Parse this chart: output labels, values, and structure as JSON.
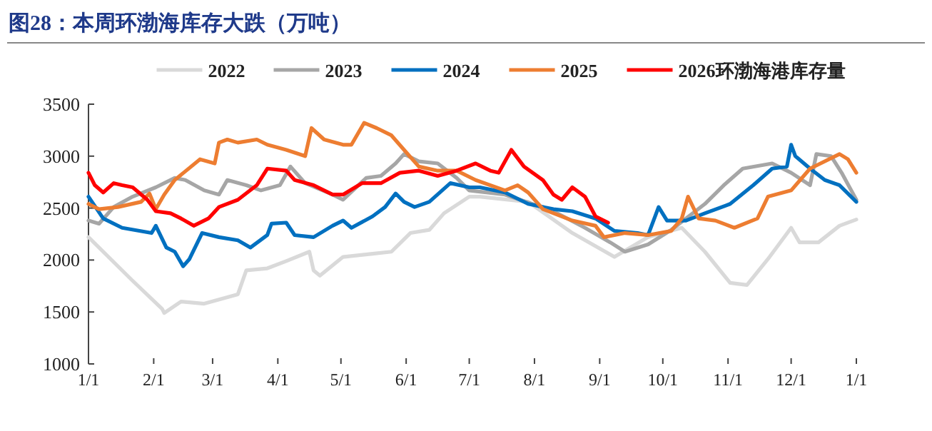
{
  "chart_data": {
    "type": "line",
    "title": "图28：本周环渤海库存大跌（万吨）",
    "legend": "top",
    "grid": false,
    "xlim": [
      "2025-01-01",
      "2026-01-01"
    ],
    "xticks": [
      {
        "value": "2025-01-01",
        "label": "1/1"
      },
      {
        "value": "2025-02-01",
        "label": "2/1"
      },
      {
        "value": "2025-03-01",
        "label": "3/1"
      },
      {
        "value": "2025-04-01",
        "label": "4/1"
      },
      {
        "value": "2025-05-01",
        "label": "5/1"
      },
      {
        "value": "2025-06-01",
        "label": "6/1"
      },
      {
        "value": "2025-07-01",
        "label": "7/1"
      },
      {
        "value": "2025-08-01",
        "label": "8/1"
      },
      {
        "value": "2025-09-01",
        "label": "9/1"
      },
      {
        "value": "2025-10-01",
        "label": "10/1"
      },
      {
        "value": "2025-11-01",
        "label": "11/1"
      },
      {
        "value": "2025-12-01",
        "label": "12/1"
      },
      {
        "value": "2026-01-01",
        "label": "1/1"
      }
    ],
    "ylim": [
      1000,
      3500
    ],
    "yticks": [
      1000,
      1500,
      2000,
      2500,
      3000,
      3500
    ],
    "series": [
      {
        "name": "2022",
        "color": "#d9d9d9",
        "x": [
          "2025-01-01",
          "2025-01-22",
          "2025-02-05",
          "2025-02-06",
          "2025-02-14",
          "2025-02-25",
          "2025-03-13",
          "2025-03-17",
          "2025-03-27",
          "2025-04-05",
          "2025-04-16",
          "2025-04-18",
          "2025-04-21",
          "2025-05-02",
          "2025-05-16",
          "2025-05-25",
          "2025-06-03",
          "2025-06-12",
          "2025-06-19",
          "2025-07-01",
          "2025-07-06",
          "2025-07-29",
          "2025-08-19",
          "2025-09-08",
          "2025-09-24",
          "2025-10-10",
          "2025-10-21",
          "2025-11-02",
          "2025-11-10",
          "2025-11-20",
          "2025-12-01",
          "2025-12-05",
          "2025-12-14",
          "2025-12-24",
          "2026-01-01"
        ],
        "values": [
          2220,
          1800,
          1530,
          1490,
          1600,
          1580,
          1670,
          1900,
          1920,
          1990,
          2080,
          1900,
          1850,
          2030,
          2060,
          2080,
          2260,
          2290,
          2450,
          2610,
          2610,
          2560,
          2260,
          2030,
          2220,
          2310,
          2080,
          1780,
          1760,
          2010,
          2310,
          2170,
          2170,
          2330,
          2390
        ]
      },
      {
        "name": "2023",
        "color": "#a6a6a6",
        "x": [
          "2025-01-01",
          "2025-01-06",
          "2025-01-13",
          "2025-01-22",
          "2025-02-02",
          "2025-02-11",
          "2025-02-16",
          "2025-02-25",
          "2025-03-04",
          "2025-03-08",
          "2025-03-17",
          "2025-03-24",
          "2025-04-02",
          "2025-04-07",
          "2025-04-14",
          "2025-04-27",
          "2025-05-02",
          "2025-05-13",
          "2025-05-20",
          "2025-05-27",
          "2025-05-31",
          "2025-06-07",
          "2025-06-16",
          "2025-06-25",
          "2025-07-01",
          "2025-07-18",
          "2025-08-10",
          "2025-08-25",
          "2025-09-06",
          "2025-09-13",
          "2025-09-24",
          "2025-10-05",
          "2025-10-21",
          "2025-10-30",
          "2025-11-08",
          "2025-11-22",
          "2025-12-01",
          "2025-12-10",
          "2025-12-13",
          "2025-12-20",
          "2025-12-25",
          "2026-01-01"
        ],
        "values": [
          2380,
          2350,
          2510,
          2610,
          2700,
          2790,
          2770,
          2670,
          2630,
          2770,
          2720,
          2670,
          2720,
          2900,
          2740,
          2630,
          2580,
          2790,
          2810,
          2930,
          3020,
          2950,
          2930,
          2790,
          2670,
          2630,
          2470,
          2310,
          2170,
          2080,
          2150,
          2290,
          2540,
          2720,
          2880,
          2930,
          2840,
          2720,
          3020,
          3000,
          2840,
          2580
        ]
      },
      {
        "name": "2024",
        "color": "#0070c0",
        "x": [
          "2025-01-01",
          "2025-01-08",
          "2025-01-17",
          "2025-01-31",
          "2025-02-02",
          "2025-02-07",
          "2025-02-11",
          "2025-02-15",
          "2025-02-18",
          "2025-02-24",
          "2025-03-04",
          "2025-03-13",
          "2025-03-19",
          "2025-03-27",
          "2025-03-29",
          "2025-04-05",
          "2025-04-09",
          "2025-04-18",
          "2025-04-27",
          "2025-05-02",
          "2025-05-06",
          "2025-05-16",
          "2025-05-22",
          "2025-05-27",
          "2025-05-31",
          "2025-06-05",
          "2025-06-12",
          "2025-06-22",
          "2025-07-01",
          "2025-07-06",
          "2025-07-18",
          "2025-07-29",
          "2025-08-10",
          "2025-08-19",
          "2025-08-30",
          "2025-09-08",
          "2025-09-19",
          "2025-09-24",
          "2025-09-29",
          "2025-10-03",
          "2025-10-12",
          "2025-10-21",
          "2025-11-02",
          "2025-11-13",
          "2025-11-22",
          "2025-11-29",
          "2025-12-01",
          "2025-12-03",
          "2025-12-10",
          "2025-12-17",
          "2025-12-24",
          "2026-01-01"
        ],
        "values": [
          2610,
          2400,
          2310,
          2260,
          2330,
          2120,
          2080,
          1940,
          2010,
          2260,
          2220,
          2190,
          2120,
          2240,
          2350,
          2360,
          2240,
          2220,
          2330,
          2380,
          2310,
          2420,
          2510,
          2640,
          2560,
          2510,
          2560,
          2740,
          2700,
          2700,
          2650,
          2540,
          2490,
          2470,
          2400,
          2280,
          2260,
          2240,
          2510,
          2380,
          2380,
          2450,
          2540,
          2720,
          2880,
          2900,
          3110,
          3000,
          2880,
          2770,
          2720,
          2560
        ]
      },
      {
        "name": "2025",
        "color": "#ed7d31",
        "x": [
          "2025-01-01",
          "2025-01-06",
          "2025-01-15",
          "2025-01-26",
          "2025-01-30",
          "2025-02-02",
          "2025-02-06",
          "2025-02-11",
          "2025-02-23",
          "2025-03-02",
          "2025-03-04",
          "2025-03-08",
          "2025-03-13",
          "2025-03-22",
          "2025-03-27",
          "2025-04-05",
          "2025-04-14",
          "2025-04-17",
          "2025-04-23",
          "2025-05-02",
          "2025-05-06",
          "2025-05-12",
          "2025-05-18",
          "2025-05-25",
          "2025-05-31",
          "2025-06-07",
          "2025-06-16",
          "2025-06-25",
          "2025-07-04",
          "2025-07-18",
          "2025-07-24",
          "2025-07-29",
          "2025-08-05",
          "2025-08-19",
          "2025-08-30",
          "2025-09-03",
          "2025-09-13",
          "2025-09-24",
          "2025-10-05",
          "2025-10-10",
          "2025-10-13",
          "2025-10-18",
          "2025-10-26",
          "2025-11-04",
          "2025-11-15",
          "2025-11-20",
          "2025-12-01",
          "2025-12-10",
          "2025-12-24",
          "2025-12-28",
          "2026-01-01"
        ],
        "values": [
          2540,
          2490,
          2510,
          2560,
          2640,
          2490,
          2630,
          2770,
          2970,
          2930,
          3130,
          3160,
          3130,
          3160,
          3110,
          3060,
          3000,
          3270,
          3160,
          3110,
          3110,
          3320,
          3270,
          3200,
          3060,
          2900,
          2860,
          2860,
          2770,
          2670,
          2720,
          2650,
          2490,
          2380,
          2330,
          2220,
          2260,
          2240,
          2280,
          2400,
          2610,
          2400,
          2380,
          2310,
          2400,
          2610,
          2670,
          2880,
          3020,
          2970,
          2840
        ]
      },
      {
        "name": "2026环渤海港库存量",
        "color": "#ff0000",
        "x": [
          "2025-01-01",
          "2025-01-04",
          "2025-01-08",
          "2025-01-13",
          "2025-01-17",
          "2025-01-22",
          "2025-01-29",
          "2025-02-02",
          "2025-02-09",
          "2025-02-14",
          "2025-02-20",
          "2025-02-27",
          "2025-03-04",
          "2025-03-13",
          "2025-03-22",
          "2025-03-27",
          "2025-04-05",
          "2025-04-09",
          "2025-04-18",
          "2025-04-27",
          "2025-05-02",
          "2025-05-11",
          "2025-05-20",
          "2025-05-29",
          "2025-06-07",
          "2025-06-16",
          "2025-06-25",
          "2025-07-04",
          "2025-07-11",
          "2025-07-15",
          "2025-07-21",
          "2025-07-27",
          "2025-08-05",
          "2025-08-10",
          "2025-08-14",
          "2025-08-19",
          "2025-08-25",
          "2025-08-30",
          "2025-09-05"
        ],
        "values": [
          2840,
          2720,
          2650,
          2740,
          2720,
          2700,
          2580,
          2470,
          2450,
          2400,
          2330,
          2400,
          2510,
          2580,
          2720,
          2880,
          2860,
          2770,
          2720,
          2630,
          2630,
          2740,
          2740,
          2840,
          2860,
          2810,
          2860,
          2930,
          2860,
          2840,
          3060,
          2900,
          2770,
          2630,
          2580,
          2700,
          2610,
          2420,
          2360
        ]
      }
    ]
  }
}
